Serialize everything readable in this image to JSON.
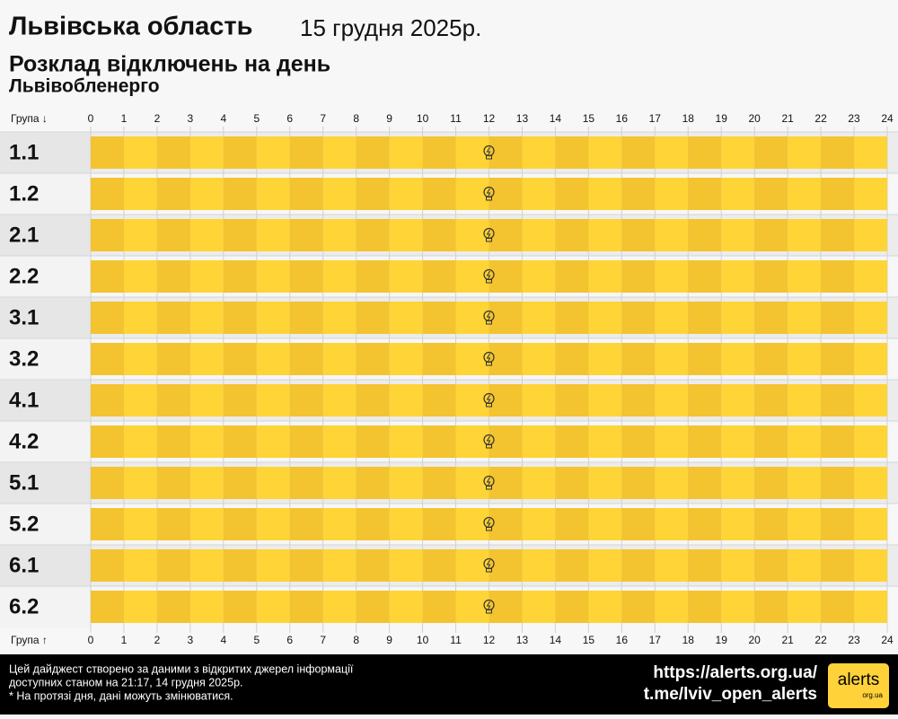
{
  "header": {
    "region": "Львівська область",
    "date": "15 грудня 2025р.",
    "subtitle": "Розклад відключень на день",
    "provider": "Львівобленерго"
  },
  "axis": {
    "top_label": "Група ↓",
    "bottom_label": "Група ↑",
    "hours": [
      0,
      1,
      2,
      3,
      4,
      5,
      6,
      7,
      8,
      9,
      10,
      11,
      12,
      13,
      14,
      15,
      16,
      17,
      18,
      19,
      20,
      21,
      22,
      23,
      24
    ]
  },
  "groups": [
    "1.1",
    "1.2",
    "2.1",
    "2.2",
    "3.1",
    "3.2",
    "4.1",
    "4.2",
    "5.1",
    "5.2",
    "6.1",
    "6.2"
  ],
  "footer": {
    "notes": [
      "Цей дайджест створено за даними з відкритих джерел інформації",
      "доступних станом на 21:17, 14 грудня 2025р.",
      "* На протязі дня, дані можуть змінюватися."
    ],
    "links": [
      "https://alerts.org.ua/",
      "t.me/lviv_open_alerts"
    ],
    "logo": "alerts",
    "logo_sub": "org.ua"
  }
}
